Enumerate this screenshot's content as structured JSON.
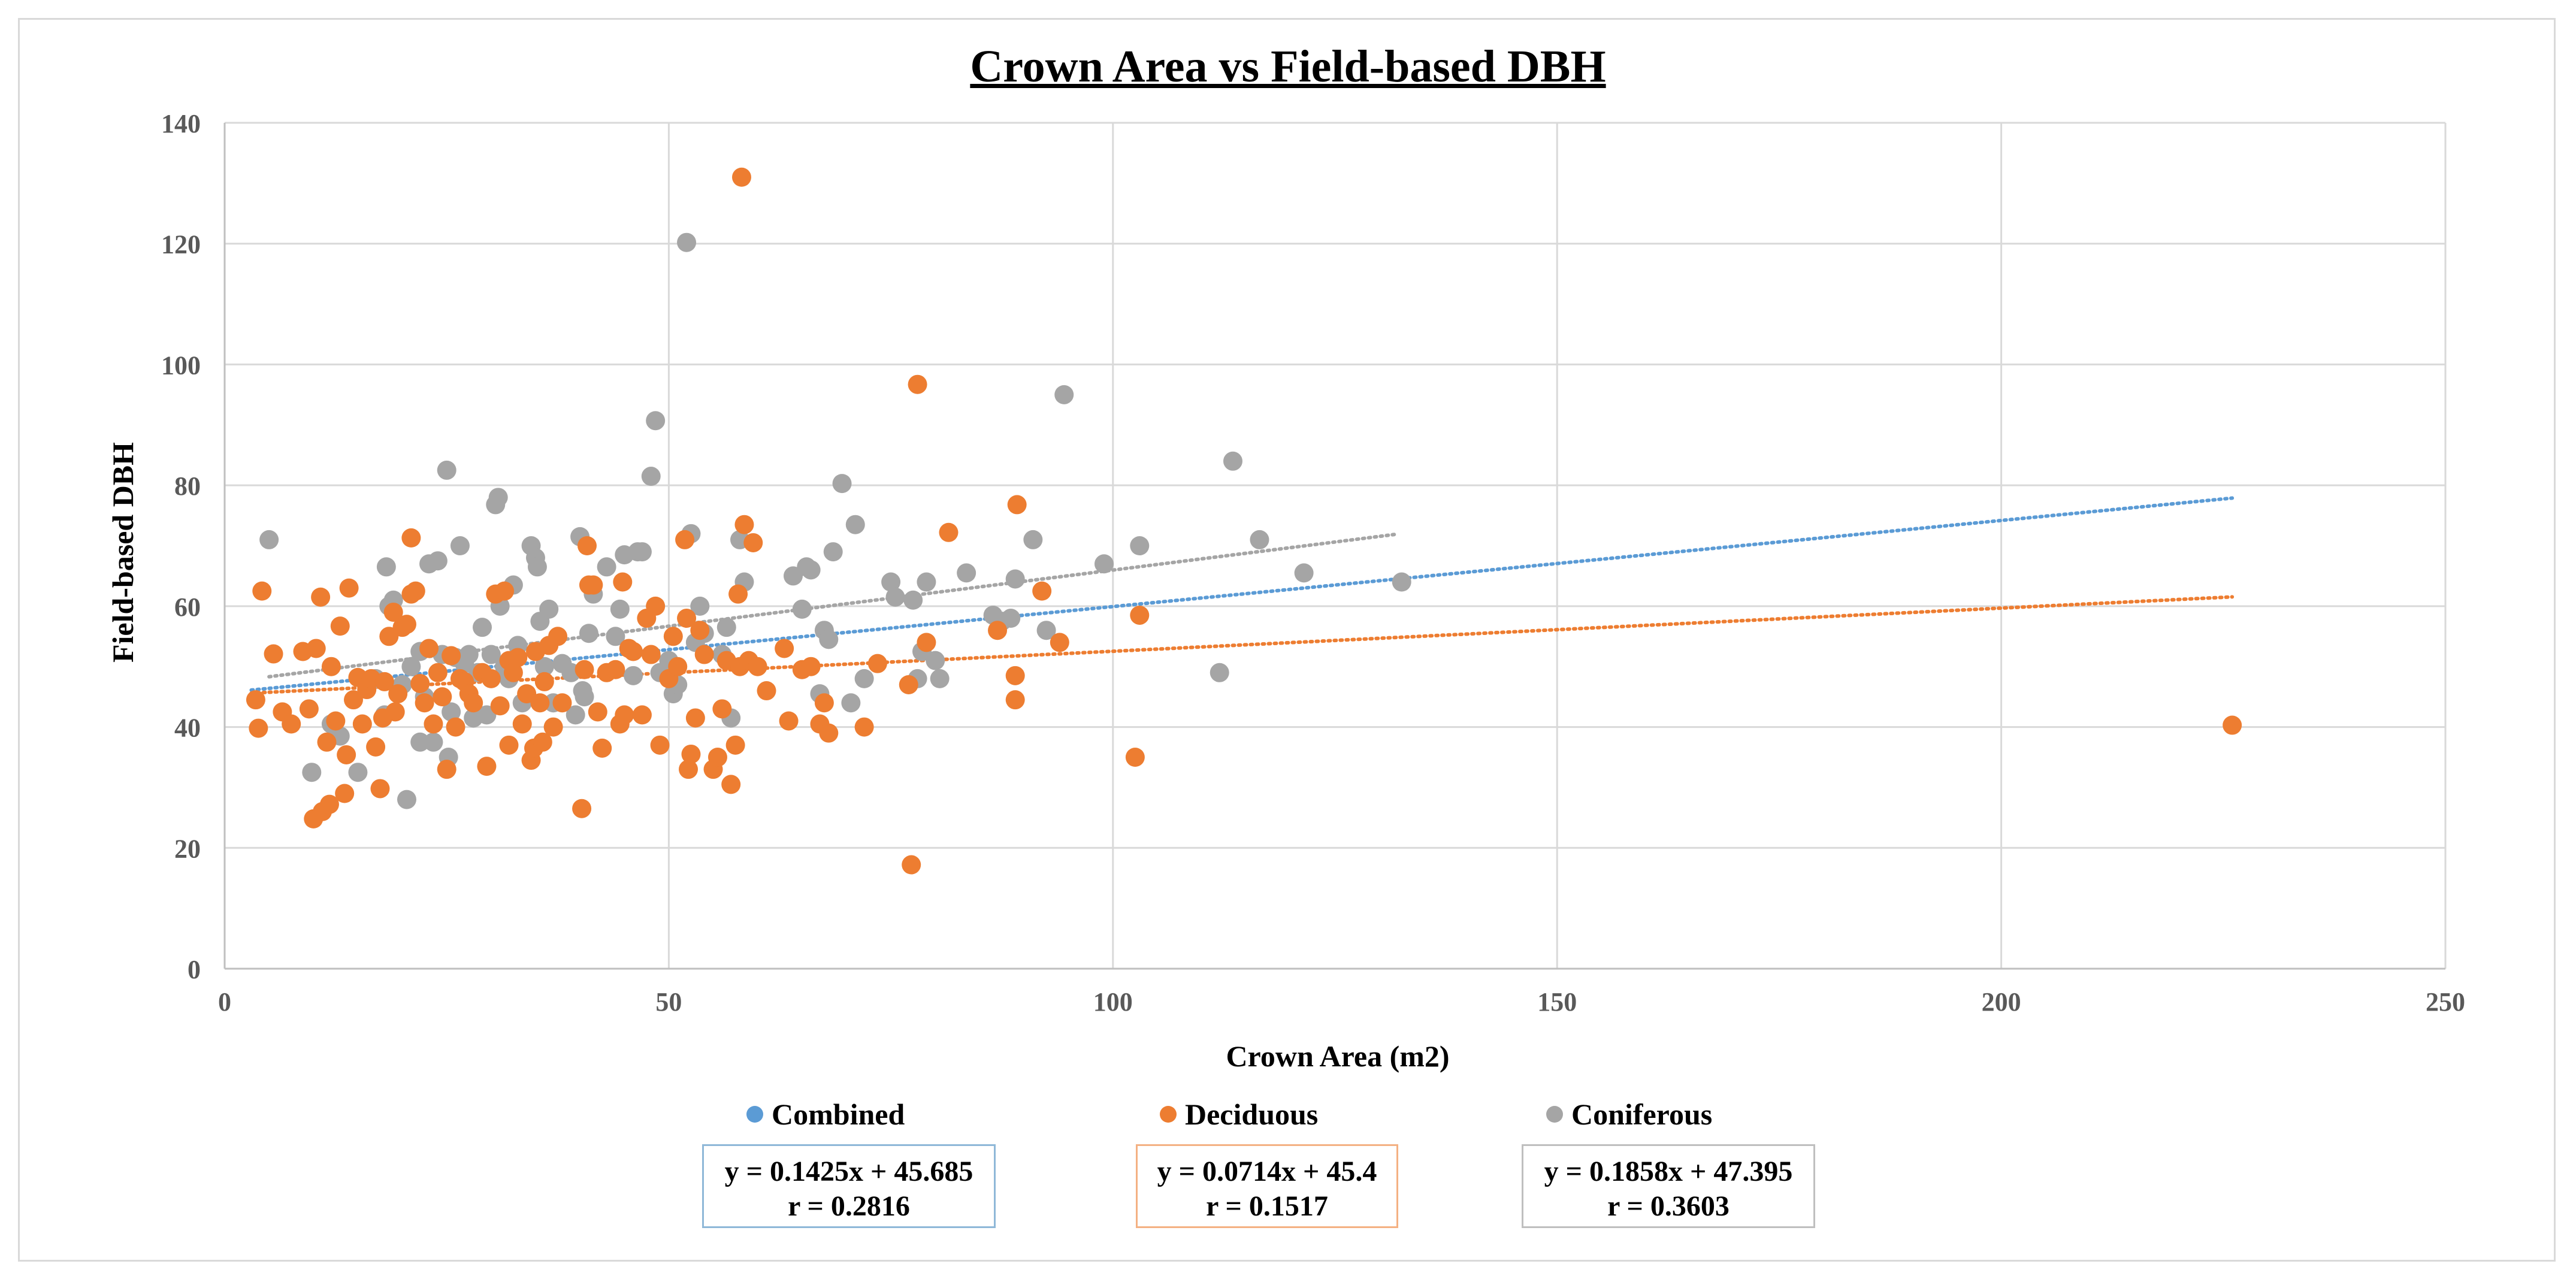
{
  "chart_data": {
    "type": "scatter",
    "title": "Crown Area vs Field-based DBH",
    "xlabel": "Crown Area (m2)",
    "ylabel": "Field-based DBH",
    "xlim": [
      0,
      250
    ],
    "ylim": [
      0,
      140
    ],
    "xticks": [
      0,
      50,
      100,
      150,
      200,
      250
    ],
    "yticks": [
      0,
      20,
      40,
      60,
      80,
      100,
      120,
      140
    ],
    "grid": true,
    "legend_position": "bottom",
    "series": [
      {
        "name": "Combined",
        "color": "#5b9bd5",
        "trendline": {
          "slope": 0.1425,
          "intercept": 45.685,
          "x_range": [
            3,
            226
          ]
        },
        "equation": "y = 0.1425x + 45.685",
        "r_label": "r = 0.2816",
        "points": []
      },
      {
        "name": "Deciduous",
        "color": "#ed7d31",
        "trendline": {
          "slope": 0.0714,
          "intercept": 45.4,
          "x_range": [
            3,
            226
          ]
        },
        "equation": "y = 0.0714x + 45.4",
        "r_label": "r = 0.1517",
        "points": [
          [
            3.5,
            44.5
          ],
          [
            3.8,
            39.8
          ],
          [
            4.2,
            62.5
          ],
          [
            5.5,
            52.1
          ],
          [
            6.5,
            42.5
          ],
          [
            7.5,
            40.5
          ],
          [
            8.8,
            52.5
          ],
          [
            9.5,
            43
          ],
          [
            10,
            24.8
          ],
          [
            10.3,
            53
          ],
          [
            10.8,
            61.5
          ],
          [
            11,
            26
          ],
          [
            11.5,
            37.5
          ],
          [
            11.8,
            27.2
          ],
          [
            12,
            50
          ],
          [
            12.5,
            41
          ],
          [
            13,
            56.7
          ],
          [
            13.5,
            29
          ],
          [
            13.7,
            35.4
          ],
          [
            14,
            63
          ],
          [
            14.5,
            44.5
          ],
          [
            15,
            48.2
          ],
          [
            15.5,
            40.5
          ],
          [
            16,
            46.2
          ],
          [
            16.5,
            48
          ],
          [
            17,
            36.7
          ],
          [
            17.5,
            29.8
          ],
          [
            17.8,
            41.5
          ],
          [
            18,
            47.5
          ],
          [
            18.5,
            55
          ],
          [
            19,
            59
          ],
          [
            19.2,
            42.5
          ],
          [
            19.5,
            45.5
          ],
          [
            20,
            56.5
          ],
          [
            20.5,
            57
          ],
          [
            21,
            62
          ],
          [
            21,
            71.3
          ],
          [
            21.5,
            62.5
          ],
          [
            22,
            47.2
          ],
          [
            22.5,
            44
          ],
          [
            23,
            53
          ],
          [
            23.5,
            40.5
          ],
          [
            24,
            49
          ],
          [
            24.5,
            45
          ],
          [
            25,
            33
          ],
          [
            25.5,
            51.8
          ],
          [
            26,
            40
          ],
          [
            26.5,
            48
          ],
          [
            27,
            47.5
          ],
          [
            27.5,
            45.5
          ],
          [
            28,
            44
          ],
          [
            29,
            49
          ],
          [
            29.5,
            33.5
          ],
          [
            30,
            48
          ],
          [
            30.5,
            62
          ],
          [
            31,
            43.5
          ],
          [
            31.5,
            62.5
          ],
          [
            32,
            37
          ],
          [
            32,
            51
          ],
          [
            32.5,
            49
          ],
          [
            33,
            51.5
          ],
          [
            33.5,
            40.5
          ],
          [
            34,
            45.5
          ],
          [
            34.5,
            34.5
          ],
          [
            34.8,
            36.5
          ],
          [
            35,
            52.5
          ],
          [
            35.5,
            44
          ],
          [
            35.8,
            37.5
          ],
          [
            36,
            47.5
          ],
          [
            36.5,
            53.5
          ],
          [
            37,
            40
          ],
          [
            37.5,
            55
          ],
          [
            38,
            44
          ],
          [
            40.2,
            26.5
          ],
          [
            40.5,
            49.5
          ],
          [
            40.8,
            70
          ],
          [
            41,
            63.5
          ],
          [
            41.5,
            63.5
          ],
          [
            42,
            42.5
          ],
          [
            42.5,
            36.5
          ],
          [
            43,
            49
          ],
          [
            44,
            49.5
          ],
          [
            44.5,
            40.5
          ],
          [
            44.8,
            64
          ],
          [
            45,
            42
          ],
          [
            45.5,
            53
          ],
          [
            46,
            52.5
          ],
          [
            47,
            42
          ],
          [
            47.5,
            58
          ],
          [
            48,
            52
          ],
          [
            48.5,
            60
          ],
          [
            49,
            37
          ],
          [
            50,
            48
          ],
          [
            50.5,
            55
          ],
          [
            51,
            50
          ],
          [
            51.8,
            71
          ],
          [
            52,
            58
          ],
          [
            52.2,
            33
          ],
          [
            52.5,
            35.5
          ],
          [
            53,
            41.5
          ],
          [
            53.5,
            56
          ],
          [
            54,
            52
          ],
          [
            55,
            33
          ],
          [
            55.5,
            35
          ],
          [
            56,
            43
          ],
          [
            56.5,
            51
          ],
          [
            57,
            30.5
          ],
          [
            57.5,
            37
          ],
          [
            57.8,
            62
          ],
          [
            58,
            50
          ],
          [
            58.2,
            131
          ],
          [
            58.5,
            73.5
          ],
          [
            59,
            51
          ],
          [
            59.5,
            70.5
          ],
          [
            60,
            50
          ],
          [
            61,
            46
          ],
          [
            63,
            53
          ],
          [
            63.5,
            41
          ],
          [
            65,
            49.5
          ],
          [
            66,
            50
          ],
          [
            67,
            40.5
          ],
          [
            67.5,
            44
          ],
          [
            68,
            39
          ],
          [
            72,
            40
          ],
          [
            73.5,
            50.5
          ],
          [
            77,
            47
          ],
          [
            77.3,
            17.2
          ],
          [
            78,
            96.7
          ],
          [
            79,
            54
          ],
          [
            81.5,
            72.2
          ],
          [
            87,
            56
          ],
          [
            89,
            48.5
          ],
          [
            89,
            44.5
          ],
          [
            89.2,
            76.8
          ],
          [
            92,
            62.5
          ],
          [
            94,
            54
          ],
          [
            102.5,
            35
          ],
          [
            103,
            58.5
          ],
          [
            226,
            40.3
          ]
        ]
      },
      {
        "name": "Coniferous",
        "color": "#a5a5a5",
        "trendline": {
          "slope": 0.1858,
          "intercept": 47.395,
          "x_range": [
            5,
            132
          ]
        },
        "equation": "y = 0.1858x + 47.395",
        "r_label": "r = 0.3603",
        "points": [
          [
            5,
            71
          ],
          [
            9.8,
            32.5
          ],
          [
            12,
            40.5
          ],
          [
            13,
            38.5
          ],
          [
            15,
            32.5
          ],
          [
            17,
            48
          ],
          [
            18,
            42
          ],
          [
            18.2,
            66.5
          ],
          [
            18.5,
            60
          ],
          [
            19,
            61
          ],
          [
            20,
            47
          ],
          [
            20.5,
            28
          ],
          [
            21,
            50
          ],
          [
            22,
            52.5
          ],
          [
            22,
            37.5
          ],
          [
            22.5,
            45
          ],
          [
            23,
            67
          ],
          [
            23.5,
            37.5
          ],
          [
            24,
            67.5
          ],
          [
            24.5,
            52
          ],
          [
            25,
            82.5
          ],
          [
            25.2,
            35
          ],
          [
            25.5,
            42.5
          ],
          [
            26,
            51.5
          ],
          [
            26.5,
            70
          ],
          [
            27,
            50.5
          ],
          [
            27.5,
            52
          ],
          [
            28,
            41.5
          ],
          [
            28.5,
            49
          ],
          [
            29,
            56.5
          ],
          [
            29.5,
            42
          ],
          [
            30,
            52
          ],
          [
            30.5,
            76.8
          ],
          [
            30.8,
            78
          ],
          [
            31,
            60
          ],
          [
            31.5,
            50
          ],
          [
            32,
            48
          ],
          [
            32.5,
            63.5
          ],
          [
            33,
            53.5
          ],
          [
            33.5,
            44
          ],
          [
            34,
            45
          ],
          [
            34.5,
            70
          ],
          [
            35,
            68
          ],
          [
            35.2,
            66.5
          ],
          [
            35.5,
            57.5
          ],
          [
            36,
            50
          ],
          [
            36.5,
            59.5
          ],
          [
            37,
            44
          ],
          [
            38,
            50.5
          ],
          [
            39,
            49
          ],
          [
            39.5,
            42
          ],
          [
            40,
            71.5
          ],
          [
            40.3,
            46
          ],
          [
            40.5,
            45
          ],
          [
            41,
            55.5
          ],
          [
            41.5,
            62
          ],
          [
            43,
            66.5
          ],
          [
            44,
            55
          ],
          [
            44.5,
            59.5
          ],
          [
            45,
            68.5
          ],
          [
            46,
            48.5
          ],
          [
            46.5,
            69
          ],
          [
            47,
            69
          ],
          [
            48,
            81.5
          ],
          [
            48.5,
            90.7
          ],
          [
            49,
            49
          ],
          [
            50,
            51
          ],
          [
            50.5,
            45.5
          ],
          [
            51,
            47
          ],
          [
            52,
            120.2
          ],
          [
            52.5,
            72
          ],
          [
            53,
            54
          ],
          [
            53.5,
            60
          ],
          [
            54,
            55.5
          ],
          [
            56,
            52
          ],
          [
            56.5,
            56.5
          ],
          [
            57,
            41.5
          ],
          [
            58,
            71
          ],
          [
            58.5,
            64
          ],
          [
            64,
            65
          ],
          [
            65,
            59.5
          ],
          [
            65.5,
            66.5
          ],
          [
            66,
            66
          ],
          [
            67,
            45.5
          ],
          [
            67.5,
            56
          ],
          [
            68,
            54.5
          ],
          [
            68.5,
            69
          ],
          [
            69.5,
            80.3
          ],
          [
            70.5,
            44
          ],
          [
            71,
            73.5
          ],
          [
            72,
            48
          ],
          [
            75,
            64
          ],
          [
            75.5,
            61.5
          ],
          [
            77.5,
            61
          ],
          [
            78,
            48
          ],
          [
            78.5,
            52.5
          ],
          [
            79,
            64
          ],
          [
            80,
            51
          ],
          [
            80.5,
            48
          ],
          [
            83.5,
            65.5
          ],
          [
            86.5,
            58.5
          ],
          [
            87.5,
            57.5
          ],
          [
            88.5,
            58
          ],
          [
            89,
            64.5
          ],
          [
            91,
            71
          ],
          [
            92.5,
            56
          ],
          [
            94.5,
            95
          ],
          [
            99,
            67
          ],
          [
            103,
            70
          ],
          [
            112,
            49
          ],
          [
            113.5,
            84
          ],
          [
            116.5,
            71
          ],
          [
            121.5,
            65.5
          ],
          [
            132.5,
            64
          ]
        ]
      }
    ]
  }
}
